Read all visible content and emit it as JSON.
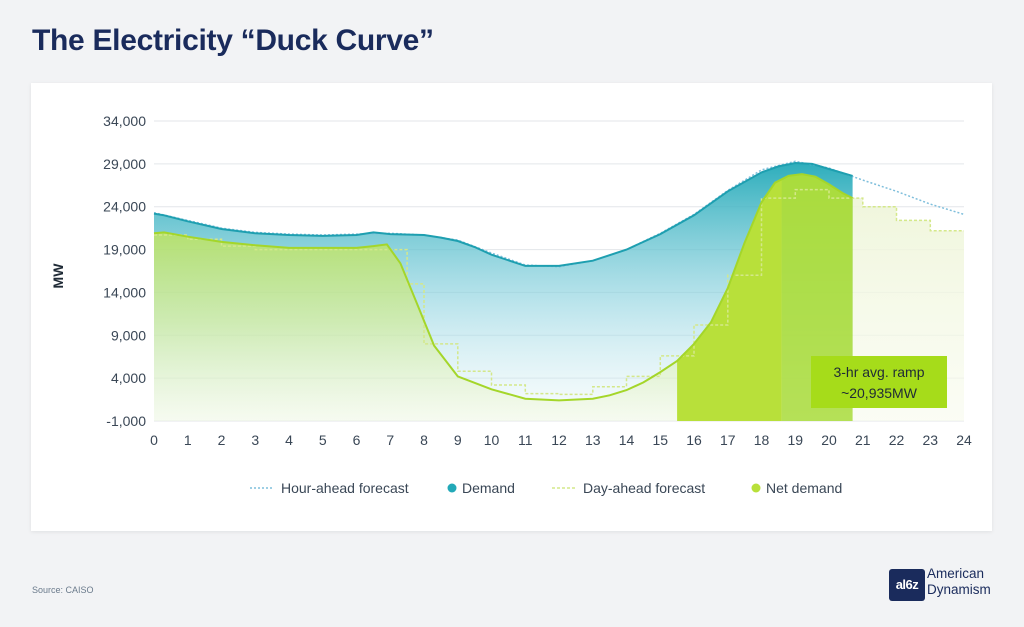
{
  "title": "The Electricity “Duck Curve”",
  "source": "Source: CAISO",
  "logo": {
    "badge": "al6z",
    "line1": "American",
    "line2": "Dynamism"
  },
  "colors": {
    "demand": "#22a9b8",
    "net_demand": "#b8e03a",
    "hour_ahead": "#7fbfdc",
    "day_ahead": "#d4e88a",
    "annotation_bg": "#a6dc1a"
  },
  "chart_data": {
    "type": "area",
    "ylabel": "MW",
    "xlabel": "",
    "ylim": [
      -1000,
      34000
    ],
    "xlim": [
      0,
      24
    ],
    "yticks": [
      -1000,
      4000,
      9000,
      14000,
      19000,
      24000,
      29000,
      34000
    ],
    "ytick_labels": [
      "-1,000",
      "4,000",
      "9,000",
      "14,000",
      "19,000",
      "24,000",
      "29,000",
      "34,000"
    ],
    "xticks": [
      0,
      1,
      2,
      3,
      4,
      5,
      6,
      7,
      8,
      9,
      10,
      11,
      12,
      13,
      14,
      15,
      16,
      17,
      18,
      19,
      20,
      21,
      22,
      23,
      24
    ],
    "xtick_labels": [
      "0",
      "1",
      "2",
      "3",
      "4",
      "5",
      "6",
      "7",
      "8",
      "9",
      "10",
      "11",
      "12",
      "13",
      "14",
      "15",
      "16",
      "17",
      "18",
      "19",
      "20",
      "21",
      "22",
      "23",
      "24"
    ],
    "grid": true,
    "legend": [
      {
        "name": "Hour-ahead forecast",
        "style": "dotted"
      },
      {
        "name": "Demand",
        "style": "dot"
      },
      {
        "name": "Day-ahead forecast",
        "style": "dashed"
      },
      {
        "name": "Net demand",
        "style": "dot"
      }
    ],
    "series": [
      {
        "name": "Demand",
        "x": [
          0,
          0.3,
          1,
          2,
          3,
          4,
          5,
          6,
          6.5,
          7,
          8,
          8.5,
          9,
          9.5,
          10,
          11,
          12,
          13,
          14,
          15,
          16,
          17,
          18,
          18.5,
          19,
          19.5,
          20,
          20.7
        ],
        "values": [
          23200,
          23000,
          22300,
          21400,
          20900,
          20700,
          20600,
          20700,
          21000,
          20800,
          20700,
          20400,
          20000,
          19300,
          18400,
          17100,
          17100,
          17700,
          19000,
          20800,
          23000,
          25800,
          28000,
          28700,
          29100,
          29000,
          28400,
          27600
        ]
      },
      {
        "name": "Net demand",
        "x": [
          0,
          0.3,
          1,
          2,
          3,
          4,
          5,
          6,
          6.5,
          6.9,
          7.3,
          7.8,
          8.3,
          9,
          10,
          11,
          12,
          13,
          13.5,
          14,
          14.5,
          15,
          15.5,
          16,
          16.5,
          17,
          17.5,
          18,
          18.4,
          18.8,
          19.2,
          19.6,
          20,
          20.4,
          20.7
        ],
        "values": [
          20900,
          21000,
          20500,
          19900,
          19500,
          19200,
          19200,
          19200,
          19400,
          19600,
          17400,
          12600,
          7800,
          4200,
          2700,
          1600,
          1400,
          1600,
          2000,
          2600,
          3500,
          4700,
          6000,
          8000,
          10500,
          14500,
          19800,
          24500,
          26800,
          27600,
          27800,
          27500,
          26600,
          25600,
          25000
        ]
      },
      {
        "name": "Hour-ahead forecast",
        "x": [
          0,
          1,
          2,
          3,
          4,
          5,
          6,
          7,
          8,
          9,
          10,
          11,
          12,
          13,
          14,
          15,
          16,
          17,
          18,
          19,
          20,
          21,
          22,
          23,
          24
        ],
        "values": [
          23300,
          22400,
          21500,
          21000,
          20800,
          20700,
          20800,
          20900,
          20700,
          20100,
          18600,
          17200,
          17000,
          17700,
          19000,
          20900,
          23100,
          25900,
          28300,
          29300,
          28500,
          27100,
          25800,
          24300,
          23100
        ]
      },
      {
        "name": "Day-ahead forecast",
        "x": [
          0,
          1,
          1,
          2,
          2,
          3,
          3,
          4,
          4,
          5,
          5,
          6,
          6,
          7,
          7,
          7.5,
          7.5,
          8,
          8,
          9,
          9,
          10,
          10,
          11,
          11,
          12,
          12,
          13,
          13,
          14,
          14,
          15,
          15,
          16,
          16,
          17,
          17,
          18,
          18,
          19,
          19,
          20,
          20,
          21,
          21,
          22,
          22,
          23,
          23,
          24
        ],
        "values": [
          20700,
          20700,
          20200,
          20200,
          19400,
          19400,
          19000,
          19000,
          19000,
          19000,
          19000,
          19000,
          19000,
          19000,
          19000,
          19000,
          15000,
          15000,
          8000,
          8000,
          4800,
          4800,
          3200,
          3200,
          2200,
          2200,
          2100,
          2100,
          3000,
          3000,
          4200,
          4200,
          6600,
          6600,
          10200,
          10200,
          16000,
          16000,
          25000,
          25000,
          26000,
          26000,
          25000,
          25000,
          24000,
          24000,
          22400,
          22400,
          21200,
          21200
        ]
      }
    ],
    "ramp_band": {
      "from_x": 15.5,
      "to_x": 18.6
    },
    "annotation": {
      "line1": "3-hr avg. ramp",
      "line2": "~20,935MW"
    }
  }
}
